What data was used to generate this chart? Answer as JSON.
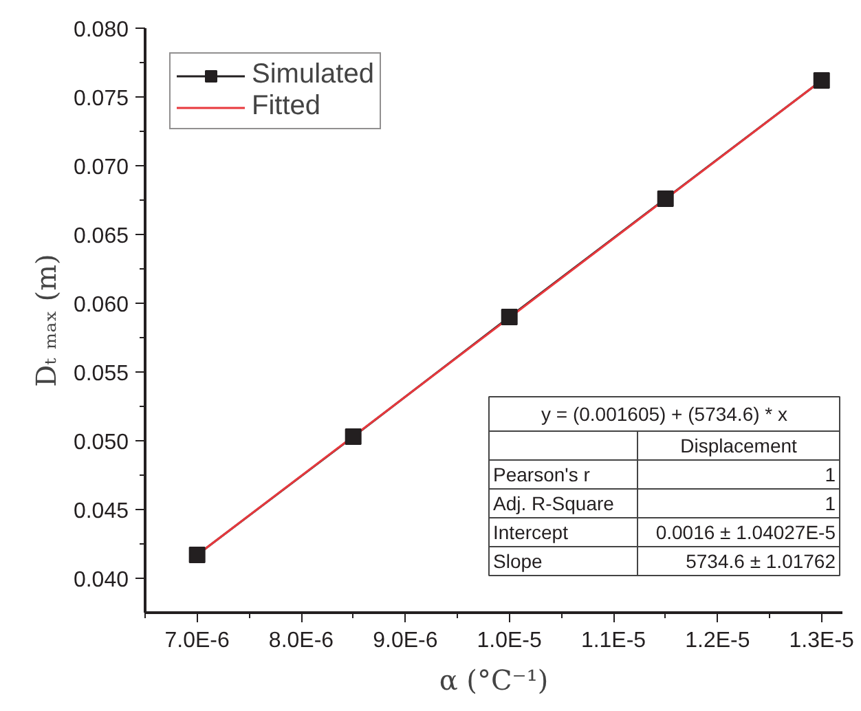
{
  "chart_data": {
    "type": "line",
    "xlabel": "α (°C⁻¹)",
    "ylabel": "Dₜ ₘₐₓ (m)",
    "series": [
      {
        "name": "Simulated",
        "color": "#231f20",
        "marker": "square",
        "x": [
          7e-06,
          8.5e-06,
          1e-05,
          1.15e-05,
          1.3e-05
        ],
        "values": [
          0.0417,
          0.0503,
          0.059,
          0.0676,
          0.0762
        ]
      },
      {
        "name": "Fitted",
        "color": "#e8383d",
        "marker": "none",
        "x": [
          7e-06,
          1.3e-05
        ],
        "values": [
          0.0417,
          0.0762
        ]
      }
    ],
    "xlim": [
      6.5e-06,
      1.32e-05
    ],
    "ylim": [
      0.0375,
      0.08
    ],
    "xticks": [
      {
        "value": 6.5e-06,
        "label": null
      },
      {
        "value": 7e-06,
        "label": "7.0E-6"
      },
      {
        "value": 7.5e-06,
        "label": null
      },
      {
        "value": 8e-06,
        "label": "8.0E-6"
      },
      {
        "value": 8.5e-06,
        "label": null
      },
      {
        "value": 9e-06,
        "label": "9.0E-6"
      },
      {
        "value": 9.5e-06,
        "label": null
      },
      {
        "value": 1e-05,
        "label": "1.0E-5"
      },
      {
        "value": 1.05e-05,
        "label": null
      },
      {
        "value": 1.1e-05,
        "label": "1.1E-5"
      },
      {
        "value": 1.15e-05,
        "label": null
      },
      {
        "value": 1.2e-05,
        "label": "1.2E-5"
      },
      {
        "value": 1.25e-05,
        "label": null
      },
      {
        "value": 1.3e-05,
        "label": "1.3E-5"
      }
    ],
    "yticks": [
      {
        "value": 0.04,
        "label": "0.040"
      },
      {
        "value": 0.0425,
        "label": null
      },
      {
        "value": 0.045,
        "label": "0.045"
      },
      {
        "value": 0.0475,
        "label": null
      },
      {
        "value": 0.05,
        "label": "0.050"
      },
      {
        "value": 0.0525,
        "label": null
      },
      {
        "value": 0.055,
        "label": "0.055"
      },
      {
        "value": 0.0575,
        "label": null
      },
      {
        "value": 0.06,
        "label": "0.060"
      },
      {
        "value": 0.0625,
        "label": null
      },
      {
        "value": 0.065,
        "label": "0.065"
      },
      {
        "value": 0.0675,
        "label": null
      },
      {
        "value": 0.07,
        "label": "0.070"
      },
      {
        "value": 0.0725,
        "label": null
      },
      {
        "value": 0.075,
        "label": "0.075"
      },
      {
        "value": 0.0775,
        "label": null
      },
      {
        "value": 0.08,
        "label": "0.080"
      }
    ],
    "legend": "top left",
    "grid": false,
    "annotations": [
      "y = (0.001605) + (5734.6) * x",
      "Displacement",
      "Pearson's r",
      "1",
      "Adj. R-Square",
      "1",
      "Intercept",
      "0.0016 ± 1.04027E-5",
      "Slope",
      "5734.6 ± 1.01762"
    ]
  }
}
